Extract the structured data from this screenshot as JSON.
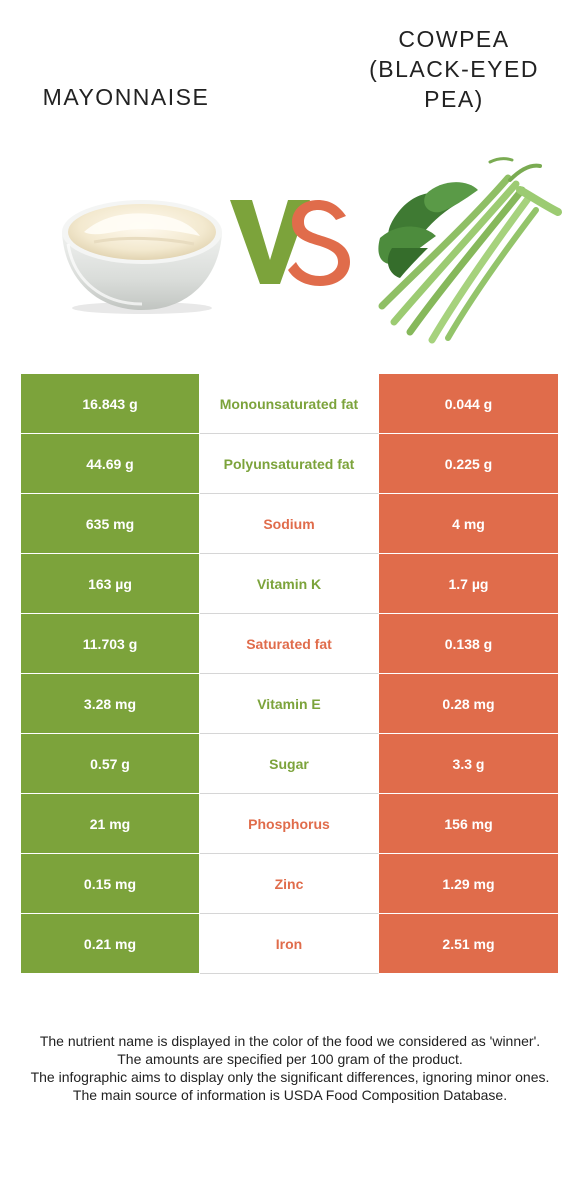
{
  "header": {
    "left_food": "MAYONNAISE",
    "right_food_lines": [
      "COWPEA",
      "(BLACK-EYED",
      "PEA)"
    ],
    "vs_left_letter": "V",
    "vs_right_letter": "S"
  },
  "colors": {
    "left_winner": "#7ca33b",
    "right_winner": "#e06c4b",
    "text": "#222222"
  },
  "table": {
    "rows": [
      {
        "left": "16.843 g",
        "nutrient": "Monounsaturated fat",
        "right": "0.044 g",
        "winner": "left"
      },
      {
        "left": "44.69 g",
        "nutrient": "Polyunsaturated fat",
        "right": "0.225 g",
        "winner": "left"
      },
      {
        "left": "635 mg",
        "nutrient": "Sodium",
        "right": "4 mg",
        "winner": "right"
      },
      {
        "left": "163 µg",
        "nutrient": "Vitamin K",
        "right": "1.7 µg",
        "winner": "left"
      },
      {
        "left": "11.703 g",
        "nutrient": "Saturated fat",
        "right": "0.138 g",
        "winner": "right"
      },
      {
        "left": "3.28 mg",
        "nutrient": "Vitamin E",
        "right": "0.28 mg",
        "winner": "left"
      },
      {
        "left": "0.57 g",
        "nutrient": "Sugar",
        "right": "3.3 g",
        "winner": "left"
      },
      {
        "left": "21 mg",
        "nutrient": "Phosphorus",
        "right": "156 mg",
        "winner": "right"
      },
      {
        "left": "0.15 mg",
        "nutrient": "Zinc",
        "right": "1.29 mg",
        "winner": "right"
      },
      {
        "left": "0.21 mg",
        "nutrient": "Iron",
        "right": "2.51 mg",
        "winner": "right"
      }
    ]
  },
  "footer": {
    "lines": [
      "The nutrient name is displayed in the color of the food we considered as 'winner'.",
      "The amounts are specified per 100 gram of the product.",
      "The infographic aims to display only the significant differences, ignoring minor ones.",
      "The main source of information is USDA Food Composition Database."
    ]
  }
}
